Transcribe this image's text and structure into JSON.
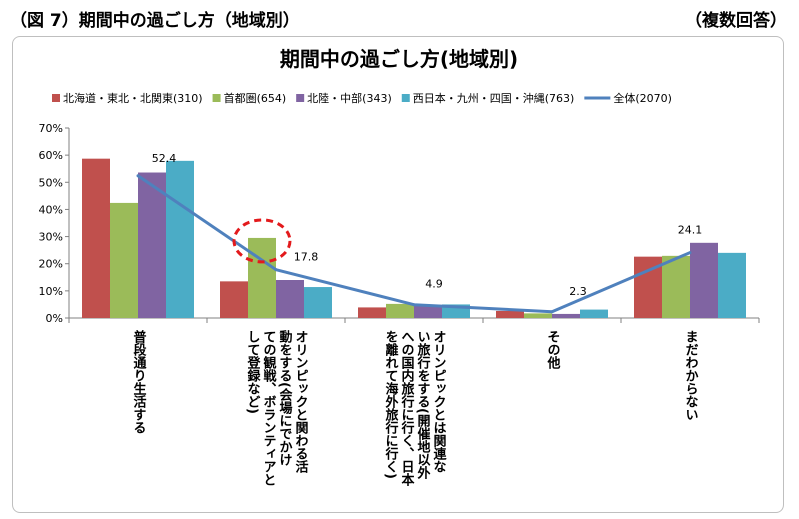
{
  "header": {
    "caption": "（図 7）期間中の過ごし方（地域別）",
    "note": "（複数回答）"
  },
  "colors": {
    "series": [
      "#C0504D",
      "#9BBB59",
      "#8064A2",
      "#4BACC6"
    ],
    "total_line": "#4F81BD",
    "highlight_circle": "#E31A1C",
    "gridline": "#808080"
  },
  "chart_data": {
    "type": "bar",
    "title": "期間中の過ごし方(地域別)",
    "categories": [
      [
        "普段通り生活する"
      ],
      [
        "オリンピックと関わる活",
        "動をする(会場にでかけ",
        "ての観戦、ボランティアと",
        "して登録など)"
      ],
      [
        "オリンピックとは関連な",
        "い旅行をする(開催地以外",
        "への国内旅行に行く、日本",
        "を離れて海外旅行に行く)"
      ],
      [
        "その他"
      ],
      [
        "まだわからない"
      ]
    ],
    "series": [
      {
        "name": "北海道・東北・北関東(310)",
        "values": [
          58.7,
          13.5,
          3.9,
          2.6,
          22.6
        ]
      },
      {
        "name": "首都圏(654)",
        "values": [
          42.4,
          29.5,
          5.2,
          1.7,
          22.9
        ]
      },
      {
        "name": "北陸・中部(343)",
        "values": [
          53.6,
          14.0,
          4.7,
          1.5,
          27.7
        ]
      },
      {
        "name": "西日本・九州・四国・沖縄(763)",
        "values": [
          57.9,
          11.4,
          5.0,
          3.1,
          24.0
        ]
      }
    ],
    "line_series": {
      "name": "全体(2070)",
      "values": [
        52.4,
        17.8,
        4.9,
        2.3,
        24.1
      ]
    },
    "line_labels": [
      "52.4",
      "17.8",
      "4.9",
      "2.3",
      "24.1"
    ],
    "yticks": [
      "0%",
      "10%",
      "20%",
      "30%",
      "40%",
      "50%",
      "60%",
      "70%"
    ],
    "ylim": [
      0,
      70
    ],
    "grid": false,
    "legend": "top",
    "highlight": {
      "category_index": 1,
      "series_index": 1,
      "shape": "dashed-circle"
    }
  }
}
